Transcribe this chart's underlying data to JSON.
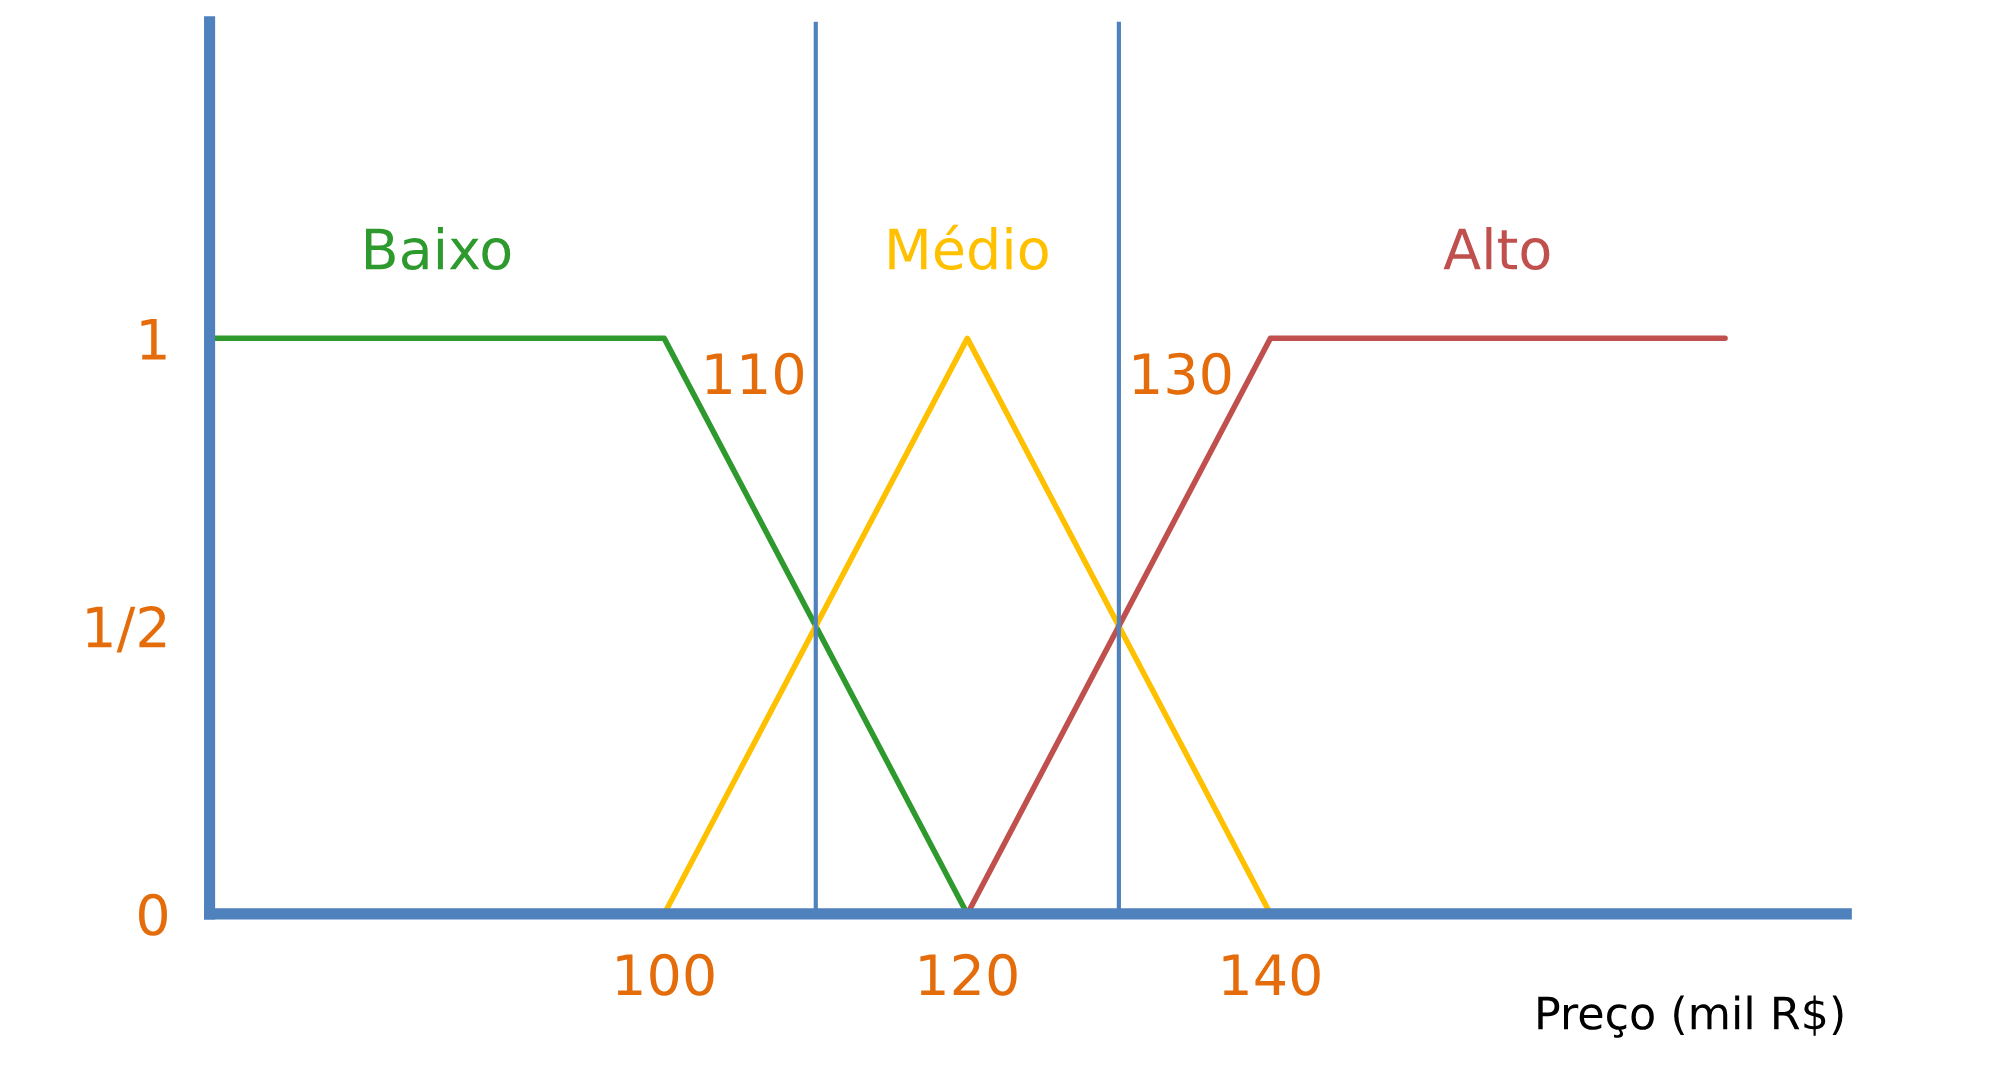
{
  "chart_data": {
    "type": "line",
    "xlabel": "Preço (mil R$)",
    "series": [
      {
        "name": "Baixo",
        "color": "#2e9a2e",
        "x": [
          70,
          100,
          120
        ],
        "values": [
          1,
          1,
          0
        ]
      },
      {
        "name": "Médio",
        "color": "#ffc000",
        "x": [
          100,
          120,
          140
        ],
        "values": [
          0,
          1,
          0
        ]
      },
      {
        "name": "Alto",
        "color": "#c0504d",
        "x": [
          120,
          140,
          170
        ],
        "values": [
          0,
          1,
          1
        ]
      }
    ],
    "xlim": [
      70,
      178
    ],
    "ylim": [
      0,
      1.55
    ],
    "xticks": [
      100,
      120,
      140
    ],
    "yticks": [
      0,
      {
        "value": 0.5,
        "label": "1/2"
      },
      1
    ],
    "ref_lines": [
      {
        "axis": "x",
        "value": 110,
        "label": "110",
        "color": "#4f81bd"
      },
      {
        "axis": "x",
        "value": 130,
        "label": "130",
        "color": "#4f81bd"
      }
    ],
    "grid": false,
    "legend": false,
    "marker": "none",
    "line_style": "solid"
  }
}
